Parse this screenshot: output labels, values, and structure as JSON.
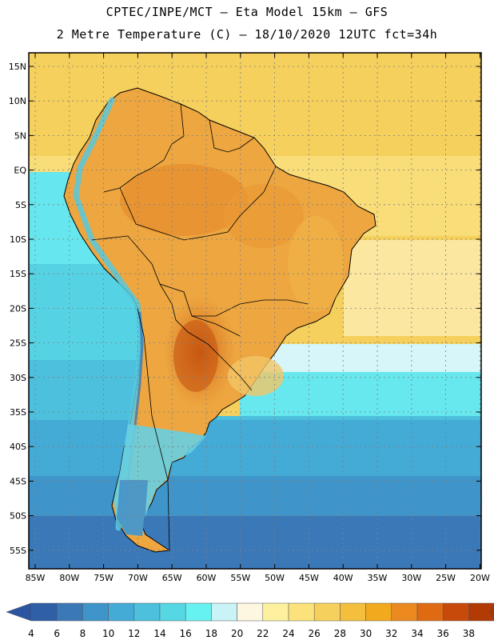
{
  "header": {
    "line1": "CPTEC/INPE/MCT –  Eta Model 15km – GFS",
    "line2": "2 Metre Temperature (C) – 18/10/2020 12UTC fct=34h"
  },
  "axes": {
    "lat_labels": [
      "15N",
      "10N",
      "5N",
      "EQ",
      "5S",
      "10S",
      "15S",
      "20S",
      "25S",
      "30S",
      "35S",
      "40S",
      "45S",
      "50S",
      "55S"
    ],
    "lon_labels": [
      "85W",
      "80W",
      "75W",
      "70W",
      "65W",
      "60W",
      "55W",
      "50W",
      "45W",
      "40W",
      "35W",
      "30W",
      "25W",
      "20W"
    ]
  },
  "colorbar": {
    "labels": [
      "4",
      "6",
      "8",
      "10",
      "12",
      "14",
      "16",
      "18",
      "20",
      "22",
      "24",
      "26",
      "28",
      "30",
      "32",
      "34",
      "36",
      "38"
    ],
    "colors": [
      "#2f5fa7",
      "#3a78b8",
      "#3f95c9",
      "#44aad6",
      "#4cc0dd",
      "#56d7e4",
      "#66f2f0",
      "#c9f3f7",
      "#fdf6e0",
      "#fdf1a0",
      "#fbe27a",
      "#f6d05c",
      "#f3bf3d",
      "#f2a91e",
      "#ec8a20",
      "#e06a12",
      "#c84a0a",
      "#b23a05"
    ],
    "min_color": "#2b55a0",
    "max_color": "#a8320a"
  }
}
